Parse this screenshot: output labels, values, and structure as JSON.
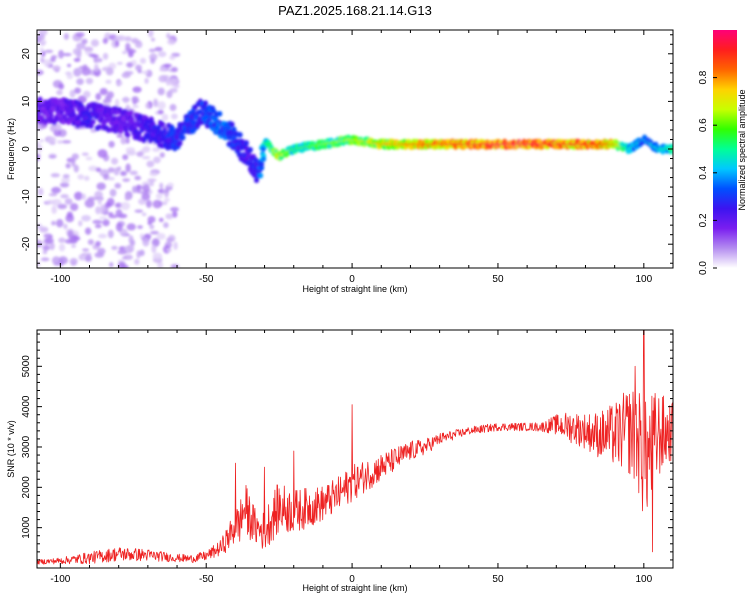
{
  "title": "PAZ1.2025.168.21.14.G13",
  "chart_data": [
    {
      "type": "heatmap",
      "title": "PAZ1.2025.168.21.14.G13",
      "xlabel": "Height of straight line (km)",
      "ylabel": "Frequency (Hz)",
      "xlim": [
        -108,
        110
      ],
      "ylim": [
        -25,
        25
      ],
      "xticks": [
        -100,
        -50,
        0,
        50,
        100
      ],
      "xtick_labels": [
        "-100",
        "-50",
        "0",
        "50",
        "100"
      ],
      "yticks": [
        -20,
        -10,
        0,
        10,
        20
      ],
      "ytick_labels": [
        "-20",
        "-10",
        "0",
        "10",
        "20"
      ],
      "colorbar": {
        "label": "Normalized spectral amplitude",
        "range": [
          0,
          1
        ],
        "ticks": [
          0.0,
          0.2,
          0.4,
          0.6,
          0.8
        ],
        "tick_labels": [
          "0.0",
          "0.2",
          "0.4",
          "0.6",
          "0.8"
        ],
        "colormap": [
          "#ffffff",
          "#b48cf0",
          "#7a1ef0",
          "#3c14f0",
          "#0050ff",
          "#00c8ff",
          "#00ff96",
          "#32ff00",
          "#c8ff00",
          "#ffd200",
          "#ff6400",
          "#ff1e1e",
          "#ff0078"
        ]
      },
      "ridge": {
        "height_km": [
          -100,
          -90,
          -80,
          -70,
          -60,
          -52,
          -45,
          -40,
          -35,
          -32,
          -30,
          -25,
          -20,
          -10,
          0,
          10,
          20,
          30,
          40,
          50,
          60,
          70,
          80,
          90,
          95,
          100,
          105,
          110
        ],
        "frequency_hz": [
          8,
          7,
          6,
          4,
          2,
          8,
          5,
          2,
          -2,
          -6,
          1.5,
          -1.5,
          0,
          1,
          2,
          1,
          1,
          1,
          1,
          1,
          1,
          1,
          1,
          1,
          0,
          2,
          0,
          0
        ],
        "amplitude": [
          0.2,
          0.25,
          0.2,
          0.25,
          0.3,
          0.3,
          0.35,
          0.3,
          0.25,
          0.3,
          0.45,
          0.65,
          0.5,
          0.55,
          0.6,
          0.7,
          0.75,
          0.8,
          0.85,
          0.9,
          0.9,
          0.85,
          0.85,
          0.75,
          0.4,
          0.35,
          0.4,
          0.5
        ]
      },
      "scatter_region": {
        "x_range": [
          -108,
          -60
        ],
        "y_range": [
          -25,
          25
        ],
        "amplitude": 0.05
      }
    },
    {
      "type": "line",
      "xlabel": "Height of straight line (km)",
      "ylabel": "SNR (10 * v/v)",
      "xlim": [
        -108,
        110
      ],
      "ylim": [
        0,
        5900
      ],
      "xticks": [
        -100,
        -50,
        0,
        50,
        100
      ],
      "xtick_labels": [
        "-100",
        "-50",
        "0",
        "50",
        "100"
      ],
      "yticks": [
        1000,
        2000,
        3000,
        4000,
        5000
      ],
      "ytick_labels": [
        "1000",
        "2000",
        "3000",
        "4000",
        "5000"
      ],
      "series": [
        {
          "color": "#ee2222",
          "x": [
            -108,
            -100,
            -90,
            -80,
            -70,
            -60,
            -55,
            -50,
            -45,
            -42,
            -40,
            -38,
            -37,
            -35,
            -33,
            -30,
            -28,
            -25,
            -20,
            -15,
            -10,
            -5,
            0,
            5,
            10,
            15,
            20,
            25,
            30,
            35,
            40,
            45,
            50,
            55,
            60,
            65,
            70,
            75,
            80,
            85,
            90,
            95,
            98,
            100,
            103,
            105,
            110
          ],
          "y": [
            150,
            180,
            250,
            350,
            320,
            250,
            230,
            300,
            500,
            800,
            1000,
            1200,
            1500,
            1250,
            1000,
            900,
            1200,
            1500,
            1400,
            1500,
            1600,
            1800,
            2100,
            2300,
            2500,
            2700,
            2900,
            3000,
            3200,
            3300,
            3400,
            3450,
            3500,
            3500,
            3500,
            3500,
            3550,
            3500,
            3400,
            3300,
            3300,
            3400,
            3200,
            2600,
            3000,
            3300,
            3400
          ],
          "noise_amplitude": [
            60,
            80,
            150,
            180,
            150,
            100,
            100,
            120,
            200,
            350,
            450,
            600,
            700,
            550,
            450,
            500,
            600,
            650,
            550,
            500,
            450,
            450,
            450,
            400,
            350,
            300,
            250,
            200,
            150,
            120,
            100,
            100,
            100,
            100,
            100,
            120,
            250,
            400,
            450,
            600,
            800,
            1100,
            1300,
            1500,
            1400,
            1100,
            700
          ],
          "spikes": [
            [
              -40,
              2600
            ],
            [
              -30,
              2500
            ],
            [
              -20,
              2900
            ],
            [
              0,
              4050
            ],
            [
              97,
              5000
            ],
            [
              100,
              5900
            ],
            [
              103,
              400
            ]
          ]
        }
      ]
    }
  ]
}
